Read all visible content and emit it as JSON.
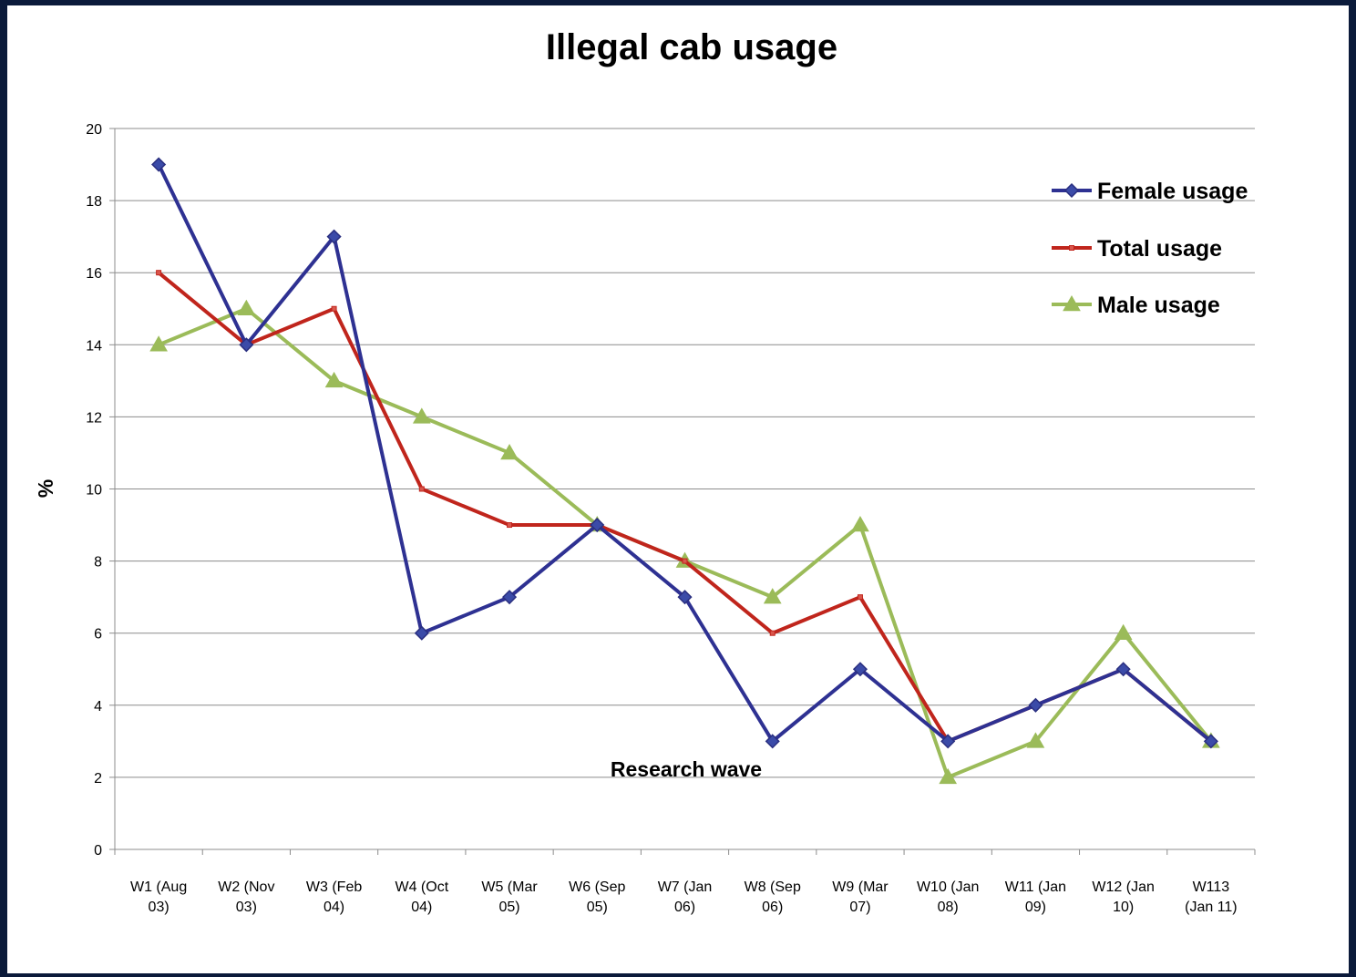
{
  "chart_data": {
    "type": "line",
    "title": "Illegal cab usage",
    "xlabel": "Research wave",
    "ylabel": "%",
    "ylim": [
      0,
      20
    ],
    "ytick_step": 2,
    "yticks": [
      "0",
      "2",
      "4",
      "6",
      "8",
      "10",
      "12",
      "14",
      "16",
      "18",
      "20"
    ],
    "grid": true,
    "legend_position": "top-right",
    "categories": [
      [
        "W1 (Aug",
        "03)"
      ],
      [
        "W2 (Nov",
        "03)"
      ],
      [
        "W3 (Feb",
        "04)"
      ],
      [
        "W4 (Oct",
        "04)"
      ],
      [
        "W5 (Mar",
        "05)"
      ],
      [
        "W6 (Sep",
        "05)"
      ],
      [
        "W7 (Jan",
        "06)"
      ],
      [
        "W8 (Sep",
        "06)"
      ],
      [
        "W9 (Mar",
        "07)"
      ],
      [
        "W10 (Jan",
        "08)"
      ],
      [
        "W11 (Jan",
        "09)"
      ],
      [
        "W12 (Jan",
        "10)"
      ],
      [
        "W113",
        "(Jan 11)"
      ]
    ],
    "series": [
      {
        "name": "Female usage",
        "color": "#2e3192",
        "marker": "diamond",
        "values": [
          19,
          14,
          17,
          6,
          7,
          9,
          7,
          3,
          5,
          3,
          4,
          5,
          3
        ]
      },
      {
        "name": "Total usage",
        "color": "#c0251c",
        "marker": "square",
        "values": [
          16,
          14,
          15,
          10,
          9,
          9,
          8,
          6,
          7,
          3,
          4,
          5,
          3
        ]
      },
      {
        "name": "Male usage",
        "color": "#9bbb59",
        "marker": "triangle",
        "values": [
          14,
          15,
          13,
          12,
          11,
          9,
          8,
          7,
          9,
          2,
          3,
          6,
          3
        ]
      }
    ]
  }
}
